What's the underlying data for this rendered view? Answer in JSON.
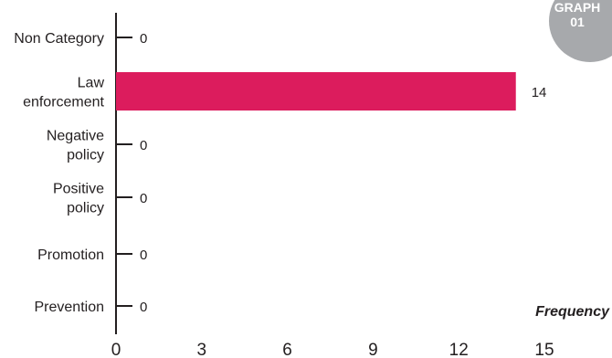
{
  "badge": {
    "line1": "GRAPH",
    "line2": "01"
  },
  "chart_data": {
    "type": "bar",
    "orientation": "horizontal",
    "categories": [
      [
        "Non Category"
      ],
      [
        "Law",
        "enforcement"
      ],
      [
        "Negative",
        "policy"
      ],
      [
        "Positive",
        "policy"
      ],
      [
        "Promotion"
      ],
      [
        "Prevention"
      ]
    ],
    "values": [
      0,
      14,
      0,
      0,
      0,
      0
    ],
    "value_labels": [
      "0",
      "14",
      "0",
      "0",
      "0",
      "0"
    ],
    "xlim": [
      0,
      15
    ],
    "xticks": [
      0,
      3,
      6,
      9,
      12,
      15
    ],
    "xlabel": "Frequency",
    "ylabel": "",
    "title": "",
    "bar_color": "#dc1c5d",
    "axis_color": "#231f20",
    "grid": false,
    "legend": "none"
  }
}
